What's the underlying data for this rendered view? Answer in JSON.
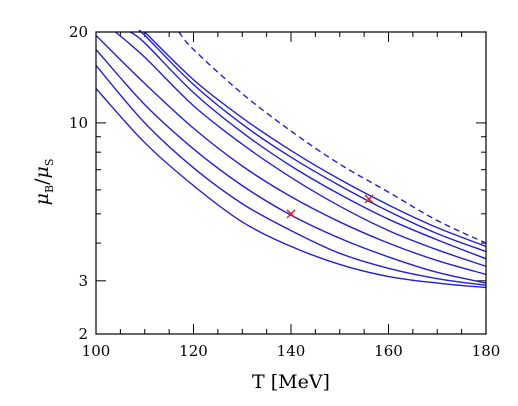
{
  "chart_data": {
    "type": "line",
    "xlabel": "T [MeV]",
    "ylabel_main": "μ",
    "ylabel_sub1": "B",
    "ylabel_slash": "/",
    "ylabel_sub2": "S",
    "xlim": [
      100,
      180
    ],
    "ylim": [
      2,
      20
    ],
    "yscale": "log",
    "x_ticks": [
      100,
      120,
      140,
      160,
      180
    ],
    "x_tick_labels": [
      "100",
      "120",
      "140",
      "160",
      "180"
    ],
    "y_ticks": [
      2,
      3,
      10,
      20
    ],
    "y_tick_labels": [
      "2",
      "3",
      "10",
      "20"
    ],
    "grid": false,
    "colors": {
      "curves": "#1f1fe0",
      "markers": "#e01b1b"
    },
    "series": [
      {
        "style": "solid",
        "x": [
          100,
          110,
          120,
          130,
          140,
          150,
          160,
          170,
          180
        ],
        "y": [
          13.0,
          8.6,
          6.2,
          4.7,
          3.9,
          3.4,
          3.1,
          2.95,
          2.85
        ]
      },
      {
        "style": "solid",
        "x": [
          100,
          110,
          120,
          130,
          140,
          150,
          160,
          170,
          180
        ],
        "y": [
          15.5,
          10.0,
          7.1,
          5.4,
          4.4,
          3.7,
          3.3,
          3.05,
          2.9
        ]
      },
      {
        "style": "solid",
        "x": [
          100,
          110,
          120,
          130,
          140,
          150,
          160,
          170,
          180
        ],
        "y": [
          17.5,
          11.5,
          8.2,
          6.2,
          4.95,
          4.15,
          3.6,
          3.2,
          2.95
        ]
      },
      {
        "style": "solid",
        "x": [
          100,
          110,
          120,
          130,
          140,
          150,
          160,
          170,
          180
        ],
        "y": [
          19.5,
          13.5,
          9.6,
          7.2,
          5.7,
          4.7,
          4.0,
          3.5,
          3.15
        ]
      },
      {
        "style": "solid",
        "x": [
          104,
          110,
          120,
          130,
          140,
          150,
          160,
          170,
          180
        ],
        "y": [
          20,
          16.5,
          11.4,
          8.5,
          6.6,
          5.3,
          4.4,
          3.8,
          3.35
        ]
      },
      {
        "style": "solid",
        "x": [
          107,
          110,
          120,
          130,
          140,
          150,
          160,
          170,
          180
        ],
        "y": [
          20,
          18.4,
          12.6,
          9.3,
          7.2,
          5.8,
          4.8,
          4.1,
          3.55
        ]
      },
      {
        "style": "solid",
        "x": [
          109,
          110,
          120,
          130,
          140,
          150,
          160,
          170,
          180
        ],
        "y": [
          20,
          19.5,
          13.4,
          9.9,
          7.7,
          6.2,
          5.1,
          4.3,
          3.75
        ]
      },
      {
        "style": "solid",
        "x": [
          110,
          120,
          130,
          140,
          150,
          160,
          170,
          180
        ],
        "y": [
          20,
          13.9,
          10.4,
          8.1,
          6.5,
          5.35,
          4.5,
          3.9
        ]
      },
      {
        "style": "dashed",
        "x": [
          117,
          120,
          130,
          140,
          150,
          160,
          170,
          180
        ],
        "y": [
          20,
          17.5,
          12.5,
          9.4,
          7.3,
          5.9,
          4.75,
          4.0
        ]
      }
    ],
    "markers": [
      {
        "x": 140,
        "y": 5.0
      },
      {
        "x": 156,
        "y": 5.6
      }
    ]
  }
}
